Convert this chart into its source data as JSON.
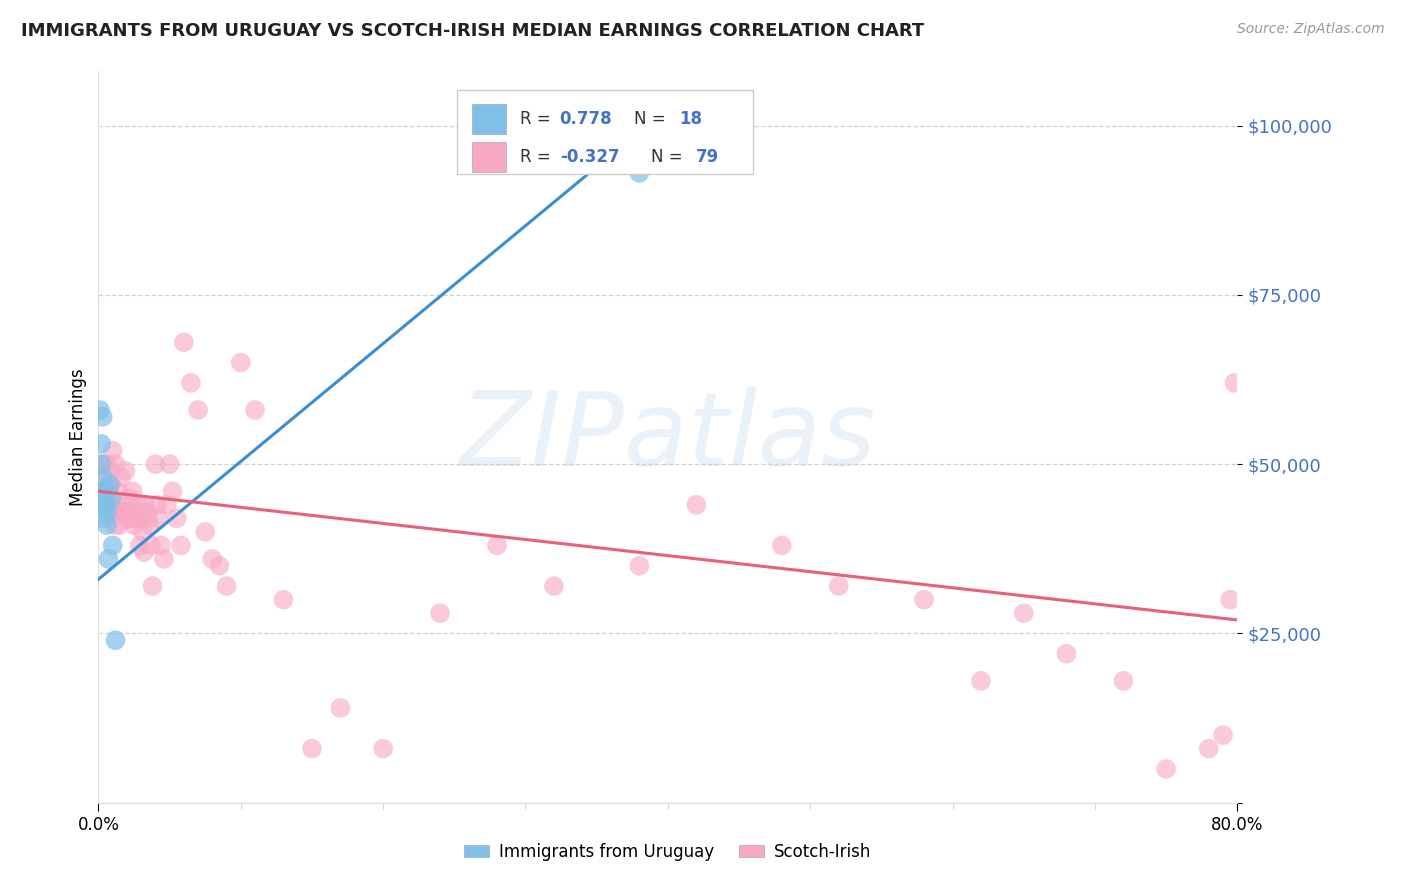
{
  "title": "IMMIGRANTS FROM URUGUAY VS SCOTCH-IRISH MEDIAN EARNINGS CORRELATION CHART",
  "source": "Source: ZipAtlas.com",
  "ylabel": "Median Earnings",
  "xmin": 0.0,
  "xmax": 0.8,
  "ymin": 0,
  "ymax": 108000,
  "watermark": "ZIPatlas",
  "blue_color": "#7fbfe8",
  "pink_color": "#f7a8c4",
  "blue_line_color": "#3a8fd4",
  "pink_line_color": "#e8607a",
  "blue_scatter_x": [
    0.001,
    0.002,
    0.002,
    0.003,
    0.003,
    0.003,
    0.004,
    0.004,
    0.005,
    0.005,
    0.006,
    0.006,
    0.007,
    0.008,
    0.009,
    0.01,
    0.012,
    0.38
  ],
  "blue_scatter_y": [
    58000,
    53000,
    50000,
    48000,
    46000,
    57000,
    44000,
    42000,
    46000,
    44000,
    43000,
    41000,
    36000,
    47000,
    45000,
    38000,
    24000,
    93000
  ],
  "pink_scatter_x": [
    0.003,
    0.004,
    0.005,
    0.006,
    0.007,
    0.007,
    0.008,
    0.009,
    0.01,
    0.011,
    0.012,
    0.012,
    0.013,
    0.014,
    0.015,
    0.015,
    0.016,
    0.017,
    0.018,
    0.019,
    0.02,
    0.021,
    0.022,
    0.023,
    0.024,
    0.025,
    0.026,
    0.027,
    0.028,
    0.029,
    0.03,
    0.031,
    0.032,
    0.033,
    0.034,
    0.035,
    0.036,
    0.037,
    0.038,
    0.04,
    0.041,
    0.042,
    0.044,
    0.046,
    0.048,
    0.05,
    0.052,
    0.055,
    0.058,
    0.06,
    0.065,
    0.07,
    0.075,
    0.08,
    0.085,
    0.09,
    0.1,
    0.11,
    0.13,
    0.15,
    0.17,
    0.2,
    0.24,
    0.28,
    0.32,
    0.38,
    0.42,
    0.48,
    0.52,
    0.58,
    0.62,
    0.65,
    0.68,
    0.72,
    0.75,
    0.78,
    0.79,
    0.795,
    0.798
  ],
  "pink_scatter_y": [
    50000,
    46000,
    48000,
    50000,
    46000,
    44000,
    49000,
    47000,
    52000,
    43000,
    41000,
    50000,
    43000,
    46000,
    43000,
    41000,
    48000,
    43000,
    44000,
    49000,
    43000,
    42000,
    45000,
    42000,
    46000,
    41000,
    43000,
    42000,
    44000,
    38000,
    42000,
    40000,
    37000,
    44000,
    43000,
    42000,
    41000,
    38000,
    32000,
    50000,
    44000,
    42000,
    38000,
    36000,
    44000,
    50000,
    46000,
    42000,
    38000,
    68000,
    62000,
    58000,
    40000,
    36000,
    35000,
    32000,
    65000,
    58000,
    30000,
    8000,
    14000,
    8000,
    28000,
    38000,
    32000,
    35000,
    44000,
    38000,
    32000,
    30000,
    18000,
    28000,
    22000,
    18000,
    5000,
    8000,
    10000,
    30000,
    62000
  ],
  "blue_trend_x": [
    0.0,
    0.385
  ],
  "blue_trend_y": [
    33000,
    100000
  ],
  "pink_trend_x": [
    0.0,
    0.8
  ],
  "pink_trend_y": [
    46000,
    27000
  ],
  "yticks": [
    0,
    25000,
    50000,
    75000,
    100000
  ],
  "ytick_labels": [
    "",
    "$25,000",
    "$50,000",
    "$75,000",
    "$100,000"
  ],
  "xtick_positions": [
    0.0,
    0.8
  ],
  "xtick_labels": [
    "0.0%",
    "80.0%"
  ]
}
